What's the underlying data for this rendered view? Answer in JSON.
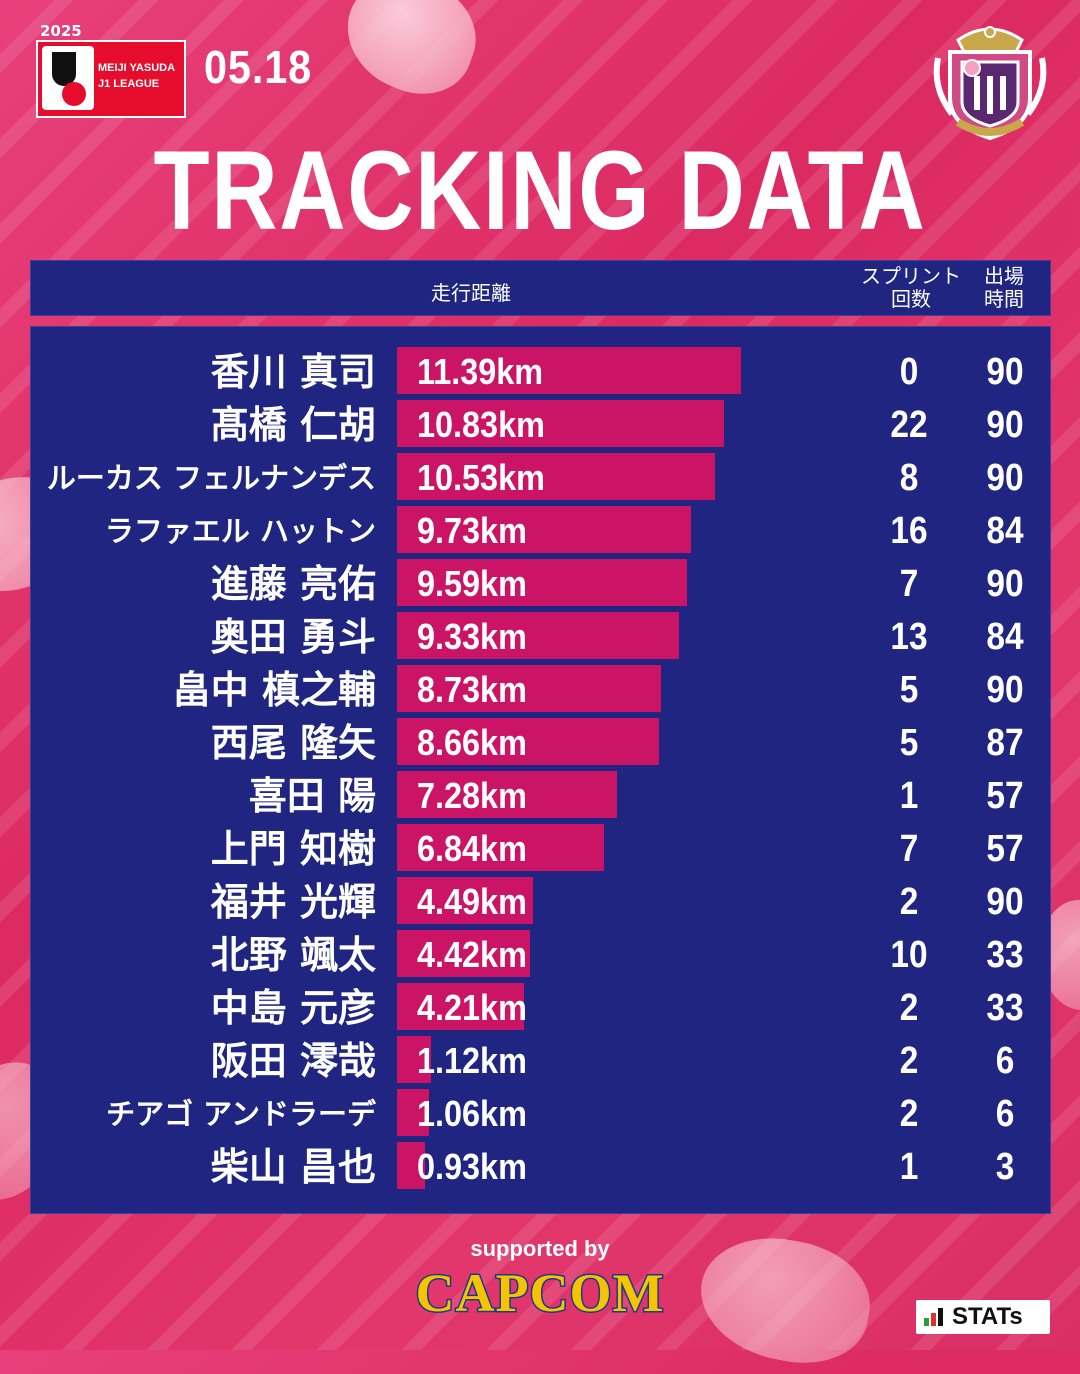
{
  "league": {
    "year": "2025",
    "line1": "MEIJI YASUDA",
    "line2": "J1 LEAGUE"
  },
  "date": "05.18",
  "club_crest_text": "CEREZO OSAKA",
  "title": "TRACKING DATA",
  "headers": {
    "distance": "走行距離",
    "sprints_line1": "スプリント",
    "sprints_line2": "回数",
    "minutes_line1": "出場",
    "minutes_line2": "時間"
  },
  "chart_data": {
    "type": "bar",
    "orientation": "horizontal",
    "title": "TRACKING DATA",
    "unit": "km",
    "categories": [
      "香川 真司",
      "髙橋 仁胡",
      "ルーカス フェルナンデス",
      "ラファエル ハットン",
      "進藤 亮佑",
      "奥田 勇斗",
      "畠中 槙之輔",
      "西尾 隆矢",
      "喜田 陽",
      "上門 知樹",
      "福井 光輝",
      "北野 颯太",
      "中島 元彦",
      "阪田 澪哉",
      "チアゴ アンドラーデ",
      "柴山 昌也"
    ],
    "values": [
      11.39,
      10.83,
      10.53,
      9.73,
      9.59,
      9.33,
      8.73,
      8.66,
      7.28,
      6.84,
      4.49,
      4.42,
      4.21,
      1.12,
      1.06,
      0.93
    ],
    "labels": [
      "11.39km",
      "10.83km",
      "10.53km",
      "9.73km",
      "9.59km",
      "9.33km",
      "8.73km",
      "8.66km",
      "7.28km",
      "6.84km",
      "4.49km",
      "4.42km",
      "4.21km",
      "1.12km",
      "1.06km",
      "0.93km"
    ],
    "sprints": [
      "0",
      "22",
      "8",
      "16",
      "7",
      "13",
      "5",
      "5",
      "1",
      "7",
      "2",
      "10",
      "2",
      "2",
      "2",
      "1"
    ],
    "minutes": [
      "90",
      "90",
      "90",
      "84",
      "90",
      "84",
      "90",
      "87",
      "57",
      "57",
      "90",
      "33",
      "33",
      "6",
      "6",
      "3"
    ],
    "xlim": [
      0,
      11.39
    ],
    "colors": {
      "bar": "#cc1466",
      "panel": "#1f2580"
    }
  },
  "footer": {
    "supported_by": "supported by",
    "sponsor": "CAPCOM",
    "stats_brand": "STATs"
  }
}
